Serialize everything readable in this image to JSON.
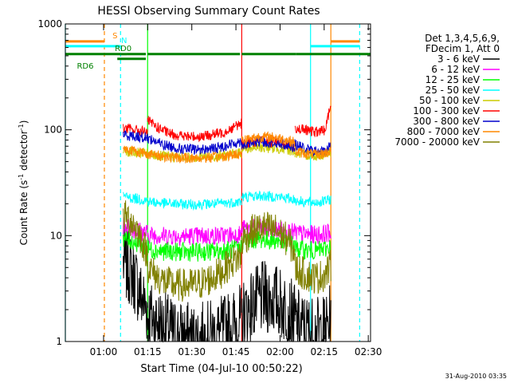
{
  "chart_data": {
    "type": "line",
    "title": "HESSI Observing Summary Count Rates",
    "xlabel": "Start Time (04-Jul-10 00:50:22)",
    "ylabel_main": "Count Rate (s",
    "ylabel_sup1": "-1",
    "ylabel_mid": " detector",
    "ylabel_sup2": "-1",
    "ylabel_end": ")",
    "footer_date": "31-Aug-2010 03:35",
    "y_scale": "log",
    "ylim": [
      1,
      1000
    ],
    "xlim_minutes": [
      -3.37,
      100.4
    ],
    "x_ticks": [
      {
        "minutes": 9.63,
        "label": "01:00"
      },
      {
        "minutes": 24.63,
        "label": "01:15"
      },
      {
        "minutes": 39.63,
        "label": "01:30"
      },
      {
        "minutes": 54.63,
        "label": "01:45"
      },
      {
        "minutes": 69.63,
        "label": "02:00"
      },
      {
        "minutes": 84.63,
        "label": "02:15"
      },
      {
        "minutes": 99.63,
        "label": "02:30"
      }
    ],
    "y_ticks": [
      {
        "value": 1,
        "label": "1"
      },
      {
        "value": 10,
        "label": "10"
      },
      {
        "value": 100,
        "label": "100"
      },
      {
        "value": 1000,
        "label": "1000"
      }
    ],
    "legend": {
      "placement": "right",
      "header": [
        "Det 1,3,4,5,6,9,",
        "FDecim 1, Att 0"
      ]
    },
    "series": [
      {
        "name": "3 - 6 keV",
        "color": "#000000",
        "segments": [
          {
            "x": [
              16.3,
              18.5,
              20.5,
              22.5,
              24.6
            ],
            "y": [
              5.5,
              4.8,
              3.8,
              2.6,
              2.0
            ]
          },
          {
            "x": [
              24.6,
              27,
              30,
              33,
              37,
              41,
              45,
              49,
              53,
              56.6
            ],
            "y": [
              1.8,
              1.6,
              1.4,
              1.2,
              1.1,
              1.05,
              1.1,
              1.2,
              1.4,
              1.6
            ]
          },
          {
            "x": [
              56.6,
              60,
              64,
              68,
              72,
              74.7
            ],
            "y": [
              1.7,
              2.2,
              2.6,
              2.5,
              2.0,
              1.6
            ]
          },
          {
            "x": [
              74.7,
              78,
              82,
              85,
              86.9
            ],
            "y": [
              1.5,
              1.3,
              1.2,
              1.3,
              1.6
            ]
          }
        ]
      },
      {
        "name": "6 - 12 keV",
        "color": "#ff00ff",
        "segments": [
          {
            "x": [
              16.3,
              20,
              24.6
            ],
            "y": [
              12.5,
              11.5,
              10.5
            ]
          },
          {
            "x": [
              24.6,
              30,
              36,
              42,
              48,
              52,
              56.6
            ],
            "y": [
              10.2,
              10.0,
              9.9,
              9.9,
              10.0,
              10.1,
              10.3
            ]
          },
          {
            "x": [
              56.6,
              62,
              68,
              72,
              74.7
            ],
            "y": [
              11.5,
              11.8,
              11.5,
              11.0,
              10.6
            ]
          },
          {
            "x": [
              74.7,
              78,
              82,
              85,
              86.9
            ],
            "y": [
              10.6,
              10.3,
              10.2,
              10.4,
              10.8
            ]
          }
        ]
      },
      {
        "name": "12 - 25 keV",
        "color": "#00ff00",
        "segments": [
          {
            "x": [
              16.3,
              20,
              24.6
            ],
            "y": [
              9.5,
              8.8,
              7.8
            ]
          },
          {
            "x": [
              24.6,
              30,
              36,
              42,
              48,
              52,
              56.6
            ],
            "y": [
              7.5,
              7.1,
              7.0,
              7.0,
              7.1,
              7.3,
              7.6
            ]
          },
          {
            "x": [
              56.6,
              62,
              68,
              72,
              74.7
            ],
            "y": [
              8.8,
              9.3,
              9.0,
              8.6,
              8.2
            ]
          },
          {
            "x": [
              74.7,
              78,
              82,
              85,
              86.9
            ],
            "y": [
              7.6,
              7.3,
              7.2,
              7.5,
              8.0
            ]
          }
        ]
      },
      {
        "name": "25 - 50 keV",
        "color": "#00ffff",
        "segments": [
          {
            "x": [
              16.3,
              20,
              24.6
            ],
            "y": [
              23.5,
              22.5,
              21.5
            ]
          },
          {
            "x": [
              24.6,
              30,
              36,
              42,
              48,
              52,
              56.6
            ],
            "y": [
              21.0,
              20.2,
              19.8,
              19.8,
              20.0,
              20.4,
              21.0
            ]
          },
          {
            "x": [
              56.6,
              62,
              68,
              72,
              74.7
            ],
            "y": [
              23.0,
              23.8,
              23.4,
              22.6,
              22.0
            ]
          },
          {
            "x": [
              74.7,
              78,
              82,
              85,
              86.9
            ],
            "y": [
              21.5,
              20.8,
              20.6,
              21.2,
              22.0
            ]
          }
        ]
      },
      {
        "name": "50 - 100 keV",
        "color": "#cccc00",
        "segments": [
          {
            "x": [
              16.3,
              20,
              24.6
            ],
            "y": [
              64,
              61,
              59
            ]
          },
          {
            "x": [
              24.6,
              30,
              36,
              42,
              48,
              52,
              56.6
            ],
            "y": [
              58,
              56,
              55,
              55,
              56,
              58,
              61
            ]
          },
          {
            "x": [
              56.6,
              62,
              68,
              72,
              74.7
            ],
            "y": [
              66,
              68,
              67,
              65,
              63
            ]
          },
          {
            "x": [
              74.7,
              78,
              82,
              85,
              86.9
            ],
            "y": [
              60,
              58,
              57,
              59,
              62
            ]
          }
        ]
      },
      {
        "name": "100 - 300 keV",
        "color": "#ff0000",
        "segments": [
          {
            "x": [
              16.3,
              20,
              24.6
            ],
            "y": [
              104,
              100,
              95
            ]
          },
          {
            "x": [
              24.6,
              28,
              32,
              38,
              44,
              50,
              54,
              56.6
            ],
            "y": [
              122,
              105,
              92,
              86,
              87,
              94,
              106,
              116
            ]
          },
          {
            "x": [
              56.6,
              62,
              68,
              72,
              74.7
            ],
            "y": [
              74,
              78,
              77,
              73,
              70
            ]
          },
          {
            "x": [
              74.7,
              78,
              82,
              85,
              86.9
            ],
            "y": [
              105,
              99,
              95,
              100,
              175
            ]
          }
        ]
      },
      {
        "name": "300 - 800 keV",
        "color": "#0000cc",
        "segments": [
          {
            "x": [
              16.3,
              20,
              24.6
            ],
            "y": [
              90,
              87,
              84
            ]
          },
          {
            "x": [
              24.6,
              30,
              36,
              42,
              48,
              52,
              56.6
            ],
            "y": [
              84,
              72,
              66,
              65,
              67,
              72,
              78
            ]
          },
          {
            "x": [
              56.6,
              62,
              68,
              72,
              74.7
            ],
            "y": [
              72,
              77,
              76,
              72,
              69
            ]
          },
          {
            "x": [
              74.7,
              78,
              82,
              85,
              86.9
            ],
            "y": [
              73,
              66,
              62,
              63,
              72
            ]
          }
        ]
      },
      {
        "name": "800 - 7000 keV",
        "color": "#ff8800",
        "segments": [
          {
            "x": [
              16.3,
              20,
              24.6
            ],
            "y": [
              67,
              63,
              60
            ]
          },
          {
            "x": [
              24.6,
              30,
              36,
              42,
              48,
              52,
              56.6
            ],
            "y": [
              59,
              56,
              54,
              54,
              55,
              57,
              60
            ]
          },
          {
            "x": [
              56.6,
              62,
              68,
              72,
              74.7
            ],
            "y": [
              80,
              86,
              85,
              80,
              76
            ]
          },
          {
            "x": [
              74.7,
              78,
              82,
              85,
              86.9
            ],
            "y": [
              63,
              60,
              58,
              60,
              64
            ]
          }
        ]
      },
      {
        "name": "7000 - 20000 keV",
        "color": "#808000",
        "segments": [
          {
            "x": [
              16.3,
              18.5,
              21,
              23,
              24.6
            ],
            "y": [
              15.5,
              14.5,
              11.5,
              8.5,
              6.5
            ]
          },
          {
            "x": [
              24.6,
              27,
              30,
              34,
              38,
              42,
              46,
              50,
              53,
              56.6
            ],
            "y": [
              5.2,
              4.3,
              3.7,
              3.4,
              3.4,
              3.5,
              3.9,
              4.6,
              5.6,
              6.5
            ]
          },
          {
            "x": [
              56.6,
              60,
              64,
              68,
              72,
              74.7
            ],
            "y": [
              9.0,
              11.0,
              12.0,
              11.4,
              9.2,
              7.0
            ]
          },
          {
            "x": [
              74.7,
              78,
              82,
              85,
              86.9
            ],
            "y": [
              5.0,
              4.3,
              4.0,
              4.3,
              5.2
            ]
          }
        ]
      }
    ],
    "vertical_markers": [
      {
        "minutes": -3.37,
        "color": "#00ffff",
        "style": "solid"
      },
      {
        "minutes": 9.9,
        "color": "#ff8800",
        "style": "dashed"
      },
      {
        "minutes": 15.4,
        "color": "#00ffff",
        "style": "dashed"
      },
      {
        "minutes": 24.6,
        "color": "#00ff00",
        "style": "solid"
      },
      {
        "minutes": 56.6,
        "color": "#ff0000",
        "style": "solid"
      },
      {
        "minutes": 80.0,
        "color": "#00ffff",
        "style": "solid"
      },
      {
        "minutes": 86.9,
        "color": "#ff8800",
        "style": "solid"
      },
      {
        "minutes": 96.7,
        "color": "#00ffff",
        "style": "dashed"
      }
    ],
    "flag_bars": [
      {
        "label": "S",
        "color": "#ff8800",
        "y_frac": 0.945,
        "width": 3,
        "intervals": [
          [
            -3.37,
            9.9
          ],
          [
            86.9,
            96.7
          ]
        ],
        "label_minutes": 13.5
      },
      {
        "label": "N",
        "color": "#00ffff",
        "y_frac": 0.93,
        "width": 3,
        "intervals": [
          [
            -3.37,
            15.4
          ],
          [
            80.0,
            96.7
          ]
        ],
        "label_minutes": 16.6
      },
      {
        "label": "RD0",
        "color": "#008000",
        "y_frac": 0.905,
        "width": 3,
        "intervals": [
          [
            -3.37,
            15.4
          ],
          [
            15.4,
            17.5
          ],
          [
            17.5,
            24.0
          ],
          [
            24.6,
            56.0
          ],
          [
            56.6,
            75.0
          ],
          [
            75.0,
            100.4
          ]
        ],
        "label_minutes": 16.3
      },
      {
        "label": "RD6",
        "color": "#008000",
        "y_frac": 0.89,
        "width": 3,
        "intervals": [
          [
            14.3,
            24.0
          ]
        ],
        "label_minutes": 3.4
      }
    ]
  }
}
